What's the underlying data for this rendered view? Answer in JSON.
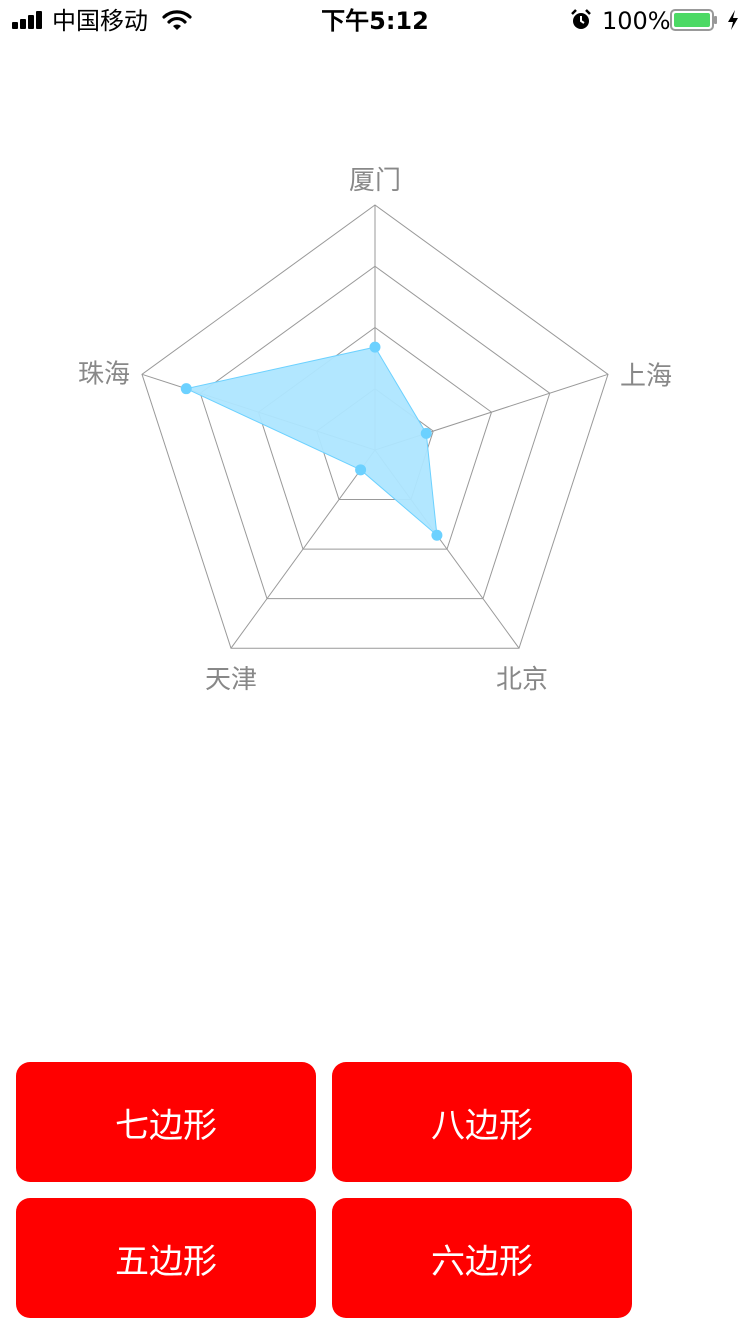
{
  "status_bar": {
    "carrier": "中国移动",
    "time": "下午5:12",
    "battery": "100%",
    "icons": [
      "signal-icon",
      "wifi-icon",
      "alarm-icon",
      "battery-icon",
      "charging-icon"
    ]
  },
  "chart_data": {
    "type": "radar",
    "title": "",
    "axes": [
      "厦门",
      "上海",
      "北京",
      "天津",
      "珠海"
    ],
    "range": [
      0,
      1
    ],
    "rings": 4,
    "series": [
      {
        "values": [
          0.42,
          0.22,
          0.43,
          0.1,
          0.81
        ],
        "color": "#6cd1ff",
        "fill": "#aee6ff"
      }
    ],
    "grid_color": "#999999"
  },
  "buttons": [
    {
      "label": "七边形"
    },
    {
      "label": "八边形"
    },
    {
      "label": "五边形"
    },
    {
      "label": "六边形"
    }
  ]
}
